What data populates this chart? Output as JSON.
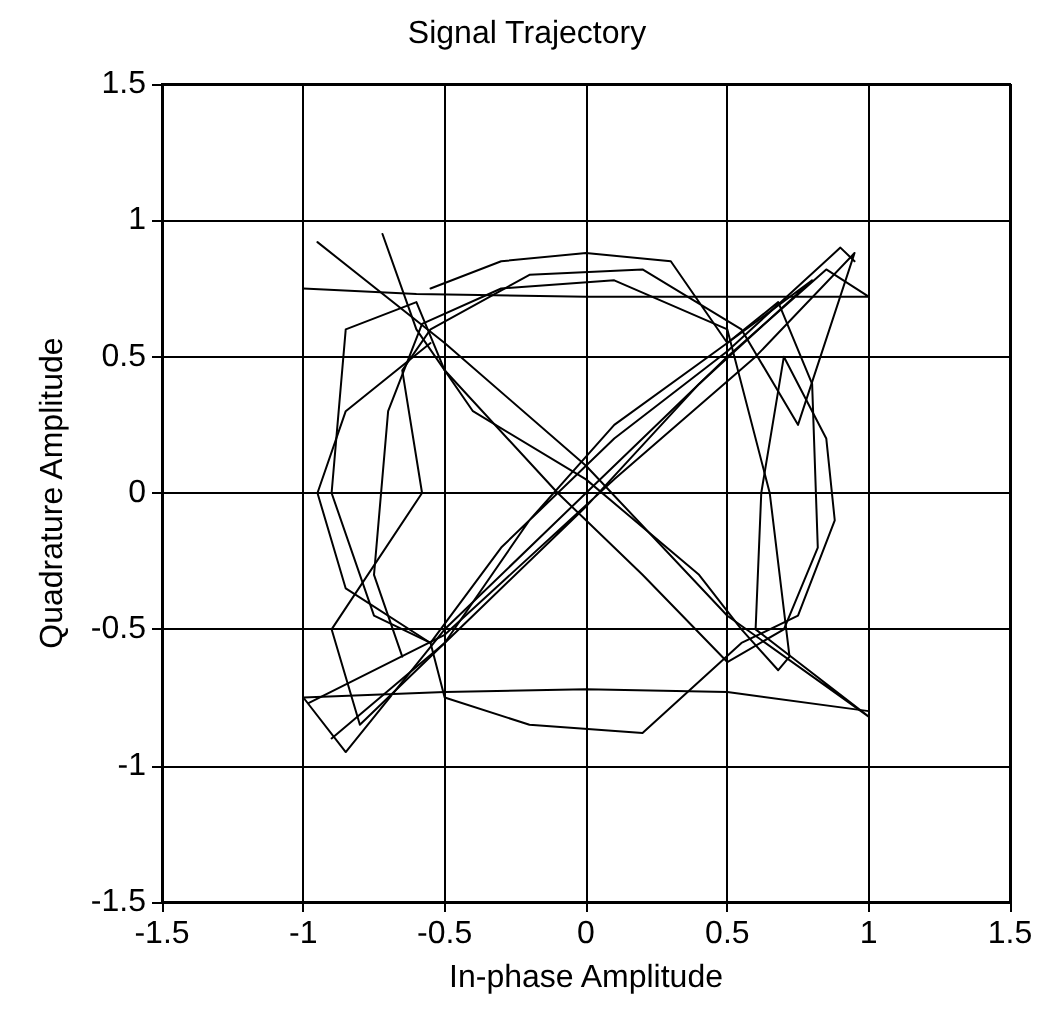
{
  "chart_data": {
    "type": "line",
    "title": "Signal Trajectory",
    "xlabel": "In-phase Amplitude",
    "ylabel": "Quadrature Amplitude",
    "xlim": [
      -1.5,
      1.5
    ],
    "ylim": [
      -1.5,
      1.5
    ],
    "xticks": [
      -1.5,
      -1,
      -0.5,
      0,
      0.5,
      1,
      1.5
    ],
    "yticks": [
      -1.5,
      -1,
      -0.5,
      0,
      0.5,
      1,
      1.5
    ],
    "grid": true,
    "marker": "none",
    "line_style": "solid",
    "series": [
      {
        "color": "#000000",
        "x": [
          -1.0,
          -0.6,
          0,
          0.5,
          1.0,
          0.85,
          0.5,
          0,
          -0.5,
          -0.85,
          -1.0,
          -0.5,
          0,
          0.5,
          1.0
        ],
        "values": [
          0.75,
          0.73,
          0.72,
          0.72,
          0.72,
          0.82,
          0.5,
          0,
          -0.5,
          -0.95,
          -0.75,
          -0.73,
          -0.72,
          -0.73,
          -0.8
        ]
      },
      {
        "color": "#000000",
        "x": [
          -0.95,
          -0.5,
          0,
          0.5,
          1.0,
          0.75,
          0.6,
          0.62,
          0.7,
          0.85,
          0.88,
          0.75,
          0.55,
          0.2,
          -0.2,
          -0.5,
          -0.55,
          -0.85,
          -0.95,
          -0.85,
          -0.55
        ],
        "values": [
          0.92,
          0.55,
          0.1,
          -0.45,
          -0.82,
          -0.62,
          -0.5,
          0,
          0.5,
          0.2,
          -0.1,
          -0.45,
          -0.55,
          -0.88,
          -0.85,
          -0.75,
          -0.55,
          -0.35,
          0,
          0.3,
          0.55
        ]
      },
      {
        "color": "#000000",
        "x": [
          -0.55,
          -0.3,
          0,
          0.3,
          0.5,
          0.8,
          0.4,
          0,
          -0.4,
          -0.8,
          -0.9,
          -0.58,
          -0.65,
          -0.55,
          -0.2,
          0.2,
          0.55,
          0.75,
          0.95,
          0.6,
          0.1,
          -0.5,
          -0.98
        ],
        "values": [
          0.75,
          0.85,
          0.88,
          0.85,
          0.55,
          0.78,
          0.4,
          -0.05,
          -0.45,
          -0.85,
          -0.5,
          0,
          0.45,
          0.6,
          0.8,
          0.82,
          0.6,
          0.25,
          0.88,
          0.5,
          0.05,
          -0.52,
          -0.77
        ]
      },
      {
        "color": "#000000",
        "x": [
          -0.9,
          -0.5,
          -0.2,
          0.1,
          0.5,
          0.68,
          0.8,
          0.82,
          0.7,
          0.5,
          0.2,
          -0.1,
          -0.5,
          -0.6,
          -0.85,
          -0.9,
          -0.75,
          -0.55,
          -0.3,
          0.1,
          0.5,
          0.9,
          0.95
        ],
        "values": [
          -0.9,
          -0.55,
          -0.1,
          0.25,
          0.55,
          0.7,
          0.4,
          -0.2,
          -0.5,
          -0.62,
          -0.3,
          0.0,
          0.45,
          0.7,
          0.6,
          0.0,
          -0.45,
          -0.55,
          -0.2,
          0.2,
          0.52,
          0.9,
          0.85
        ]
      },
      {
        "color": "#000000",
        "x": [
          -0.72,
          -0.6,
          -0.4,
          0,
          0.4,
          0.55,
          0.68,
          0.72,
          0.65,
          0.5,
          0.1,
          -0.3,
          -0.58,
          -0.7,
          -0.75,
          -0.65
        ],
        "values": [
          0.95,
          0.6,
          0.3,
          0.05,
          -0.3,
          -0.5,
          -0.65,
          -0.6,
          0.0,
          0.6,
          0.78,
          0.75,
          0.62,
          0.3,
          -0.3,
          -0.6
        ]
      }
    ]
  }
}
